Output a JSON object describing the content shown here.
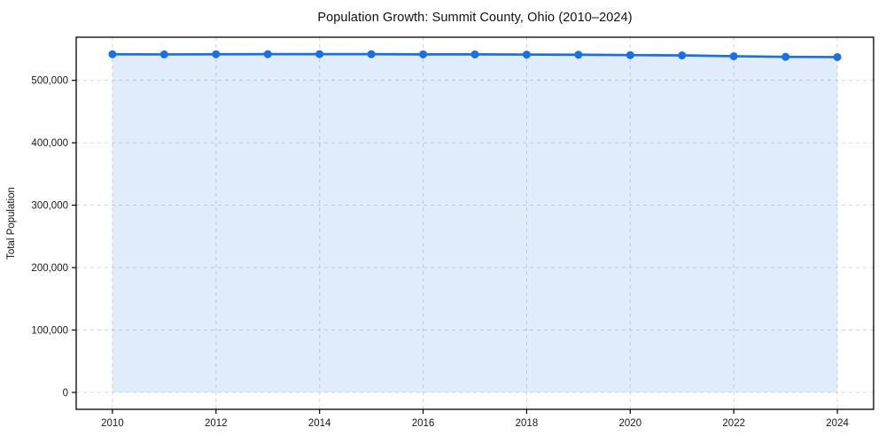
{
  "title": "Population Growth: Summit County, Ohio (2010–2024)",
  "chart_data": {
    "type": "line",
    "title": "Population Growth: Summit County, Ohio (2010–2024)",
    "xlabel": "",
    "ylabel": "Total Population",
    "x": [
      2010,
      2011,
      2012,
      2013,
      2014,
      2015,
      2016,
      2017,
      2018,
      2019,
      2020,
      2021,
      2022,
      2023,
      2024
    ],
    "series": [
      {
        "name": "Total Population",
        "values": [
          541781,
          541532,
          541783,
          541943,
          541968,
          541936,
          541648,
          541570,
          541326,
          541013,
          540428,
          539966,
          538646,
          537632,
          537239
        ]
      }
    ],
    "xlim": [
      2009.3,
      2024.7
    ],
    "ylim": [
      -27100,
      569100
    ],
    "xticks": [
      2010,
      2012,
      2014,
      2016,
      2018,
      2020,
      2022,
      2024
    ],
    "xtick_labels": [
      "2010",
      "2012",
      "2014",
      "2016",
      "2018",
      "2020",
      "2022",
      "2024"
    ],
    "yticks": [
      0,
      100000,
      200000,
      300000,
      400000,
      500000
    ],
    "ytick_labels": [
      "0",
      "100,000",
      "200,000",
      "300,000",
      "400,000",
      "500,000"
    ],
    "grid": "both",
    "grid_style": "dashed",
    "legend_position": "none",
    "marker": "circle",
    "area_fill_to_zero": true,
    "colors": {
      "line": "#1a6fe3",
      "marker": "#1a6fe3",
      "area_fill": "rgba(26, 111, 227, 0.13)",
      "grid": "#d7d7d7",
      "spine": "#000000",
      "tick_text": "#1a1a1a",
      "background": "#ffffff"
    }
  }
}
